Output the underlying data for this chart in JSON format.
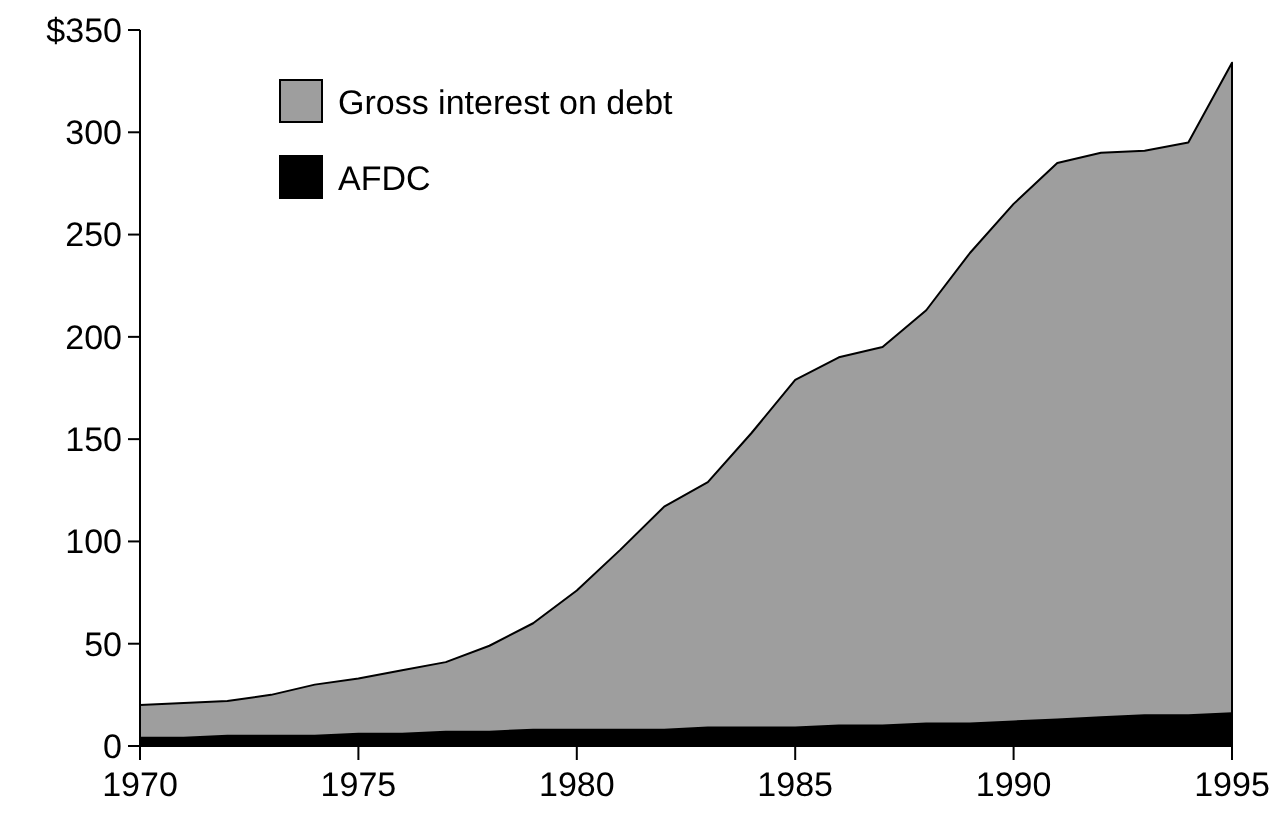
{
  "chart_data": {
    "type": "area",
    "x": [
      1970,
      1971,
      1972,
      1973,
      1974,
      1975,
      1976,
      1977,
      1978,
      1979,
      1980,
      1981,
      1982,
      1983,
      1984,
      1985,
      1986,
      1987,
      1988,
      1989,
      1990,
      1991,
      1992,
      1993,
      1994,
      1995
    ],
    "series": [
      {
        "name": "Gross interest on debt",
        "color": "#9e9e9e",
        "values": [
          20,
          21,
          22,
          25,
          30,
          33,
          37,
          41,
          49,
          60,
          76,
          96,
          117,
          129,
          153,
          179,
          190,
          195,
          213,
          241,
          265,
          285,
          290,
          291,
          295,
          334
        ]
      },
      {
        "name": "AFDC",
        "color": "#000000",
        "values": [
          4,
          4,
          5,
          5,
          5,
          6,
          6,
          7,
          7,
          8,
          8,
          8,
          8,
          9,
          9,
          9,
          10,
          10,
          11,
          11,
          12,
          13,
          14,
          15,
          15,
          16
        ]
      }
    ],
    "xlim": [
      1970,
      1995
    ],
    "xticks": [
      1970,
      1975,
      1980,
      1985,
      1990,
      1995
    ],
    "ylim": [
      0,
      350
    ],
    "yticks": [
      0,
      50,
      100,
      150,
      200,
      250,
      300,
      {
        "value": 350,
        "label": "$350"
      }
    ],
    "legend": "top left",
    "grid": false
  }
}
